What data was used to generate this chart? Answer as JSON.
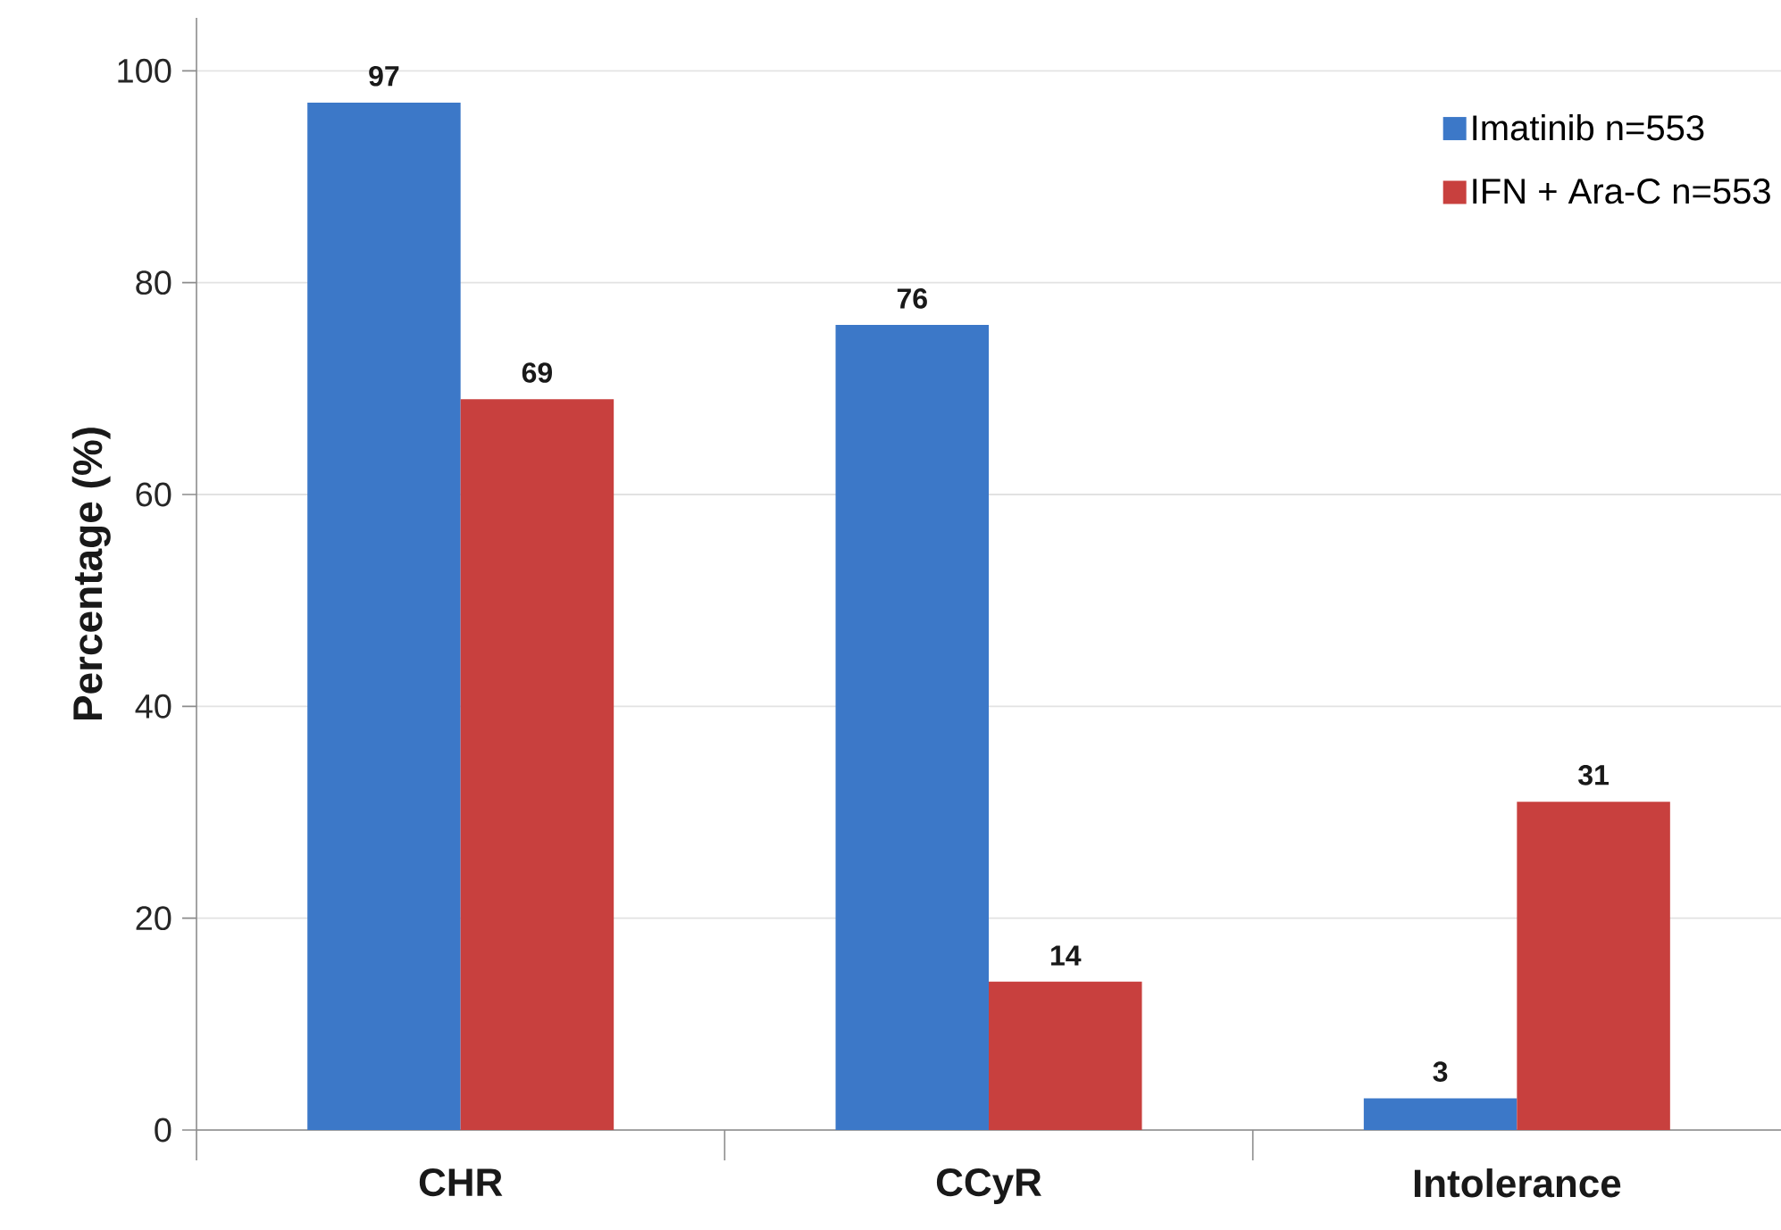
{
  "chart_data": {
    "type": "bar",
    "ylabel": "Percentage (%)",
    "categories": [
      "CHR",
      "CCyR",
      "Intolerance"
    ],
    "series": [
      {
        "name": "Imatinib n=553",
        "color": "#3c78c8",
        "values": [
          97,
          76,
          3
        ]
      },
      {
        "name": "IFN + Ara-C n=553",
        "color": "#c8403e",
        "values": [
          69,
          14,
          31
        ]
      }
    ],
    "ylim": [
      0,
      105
    ],
    "yticks": [
      0,
      20,
      40,
      60,
      80,
      100
    ],
    "grid": "y",
    "legend": "top right",
    "data_labels": true
  }
}
